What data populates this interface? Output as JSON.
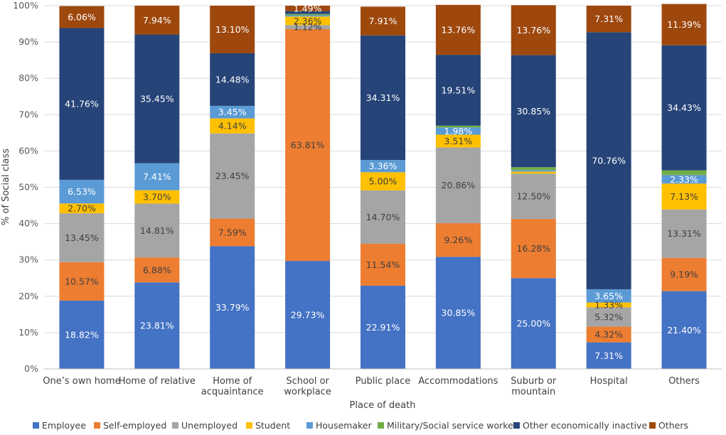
{
  "chart_data": {
    "type": "bar",
    "stacked": true,
    "title": "",
    "xlabel": "Place of death",
    "ylabel": "% of Social class",
    "ylim": [
      0,
      100
    ],
    "y_ticks": [
      "0%",
      "10%",
      "20%",
      "30%",
      "40%",
      "50%",
      "60%",
      "70%",
      "80%",
      "90%",
      "100%"
    ],
    "grid": true,
    "legend_position": "bottom",
    "categories": [
      [
        "One’s own home"
      ],
      [
        "Home of relative"
      ],
      [
        "Home of",
        "acquaintance"
      ],
      [
        "School or",
        "workplace"
      ],
      [
        "Public place"
      ],
      [
        "Accommodations"
      ],
      [
        "Suburb or",
        "mountain"
      ],
      [
        "Hospital"
      ],
      [
        "Others"
      ]
    ],
    "series": [
      {
        "name": "Employee",
        "color": "#4472C4",
        "label_color": "#ffffff",
        "values": [
          18.82,
          23.81,
          33.79,
          29.73,
          22.91,
          30.85,
          25.0,
          7.31,
          21.4
        ],
        "labels": [
          "18.82%",
          "23.81%",
          "33.79%",
          "29.73%",
          "22.91%",
          "30.85%",
          "25.00%",
          "7.31%",
          "21.40%"
        ]
      },
      {
        "name": "Self-employed",
        "color": "#ED7D31",
        "label_color": "#404040",
        "values": [
          10.57,
          6.88,
          7.59,
          63.81,
          11.54,
          9.26,
          16.28,
          4.32,
          9.19
        ],
        "labels": [
          "10.57%",
          "6.88%",
          "7.59%",
          "63.81%",
          "11.54%",
          "9.26%",
          "16.28%",
          "4.32%",
          "9.19%"
        ]
      },
      {
        "name": "Unemployed",
        "color": "#A5A5A5",
        "label_color": "#404040",
        "values": [
          13.45,
          14.81,
          23.45,
          1.12,
          14.7,
          20.86,
          12.5,
          5.32,
          13.31
        ],
        "labels": [
          "13.45%",
          "14.81%",
          "23.45%",
          "1.12%",
          "14.70%",
          "20.86%",
          "12.50%",
          "5.32%",
          "13.31%"
        ]
      },
      {
        "name": "Student",
        "color": "#FFC000",
        "label_color": "#404040",
        "values": [
          2.7,
          3.7,
          4.14,
          2.36,
          5.0,
          3.51,
          0.55,
          1.33,
          7.13
        ],
        "labels": [
          "2.70%",
          "3.70%",
          "4.14%",
          "2.36%",
          "5.00%",
          "3.51%",
          "",
          "1.33%",
          "7.13%"
        ]
      },
      {
        "name": "Housemaker",
        "color": "#5B9BD5",
        "label_color": "#ffffff",
        "values": [
          6.53,
          7.41,
          3.45,
          0.35,
          3.36,
          1.98,
          0.4,
          3.65,
          2.33
        ],
        "labels": [
          "6.53%",
          "7.41%",
          "3.45%",
          "",
          "3.36%",
          "1.98%",
          "",
          "3.65%",
          "2.33%"
        ]
      },
      {
        "name": "Military/Social service worker",
        "color": "#70AD47",
        "label_color": "#ffffff",
        "values": [
          0.0,
          0.0,
          0.0,
          0.35,
          0.0,
          0.5,
          0.8,
          0.0,
          1.3
        ],
        "labels": [
          "",
          "",
          "",
          "",
          "",
          "",
          "",
          "",
          ""
        ]
      },
      {
        "name": "Other economically inactive",
        "color": "#264478",
        "label_color": "#ffffff",
        "values": [
          41.76,
          35.45,
          14.48,
          0.79,
          34.31,
          19.51,
          30.85,
          70.76,
          34.43
        ],
        "labels": [
          "41.76%",
          "35.45%",
          "14.48%",
          "",
          "34.31%",
          "19.51%",
          "30.85%",
          "70.76%",
          "34.43%"
        ]
      },
      {
        "name": "Others",
        "color": "#9E480E",
        "label_color": "#ffffff",
        "values": [
          6.06,
          7.94,
          13.1,
          1.49,
          7.91,
          13.76,
          13.76,
          7.31,
          11.39
        ],
        "labels": [
          "6.06%",
          "7.94%",
          "13.10%",
          "1.49%",
          "7.91%",
          "13.76%",
          "13.76%",
          "7.31%",
          "11.39%"
        ]
      }
    ]
  }
}
